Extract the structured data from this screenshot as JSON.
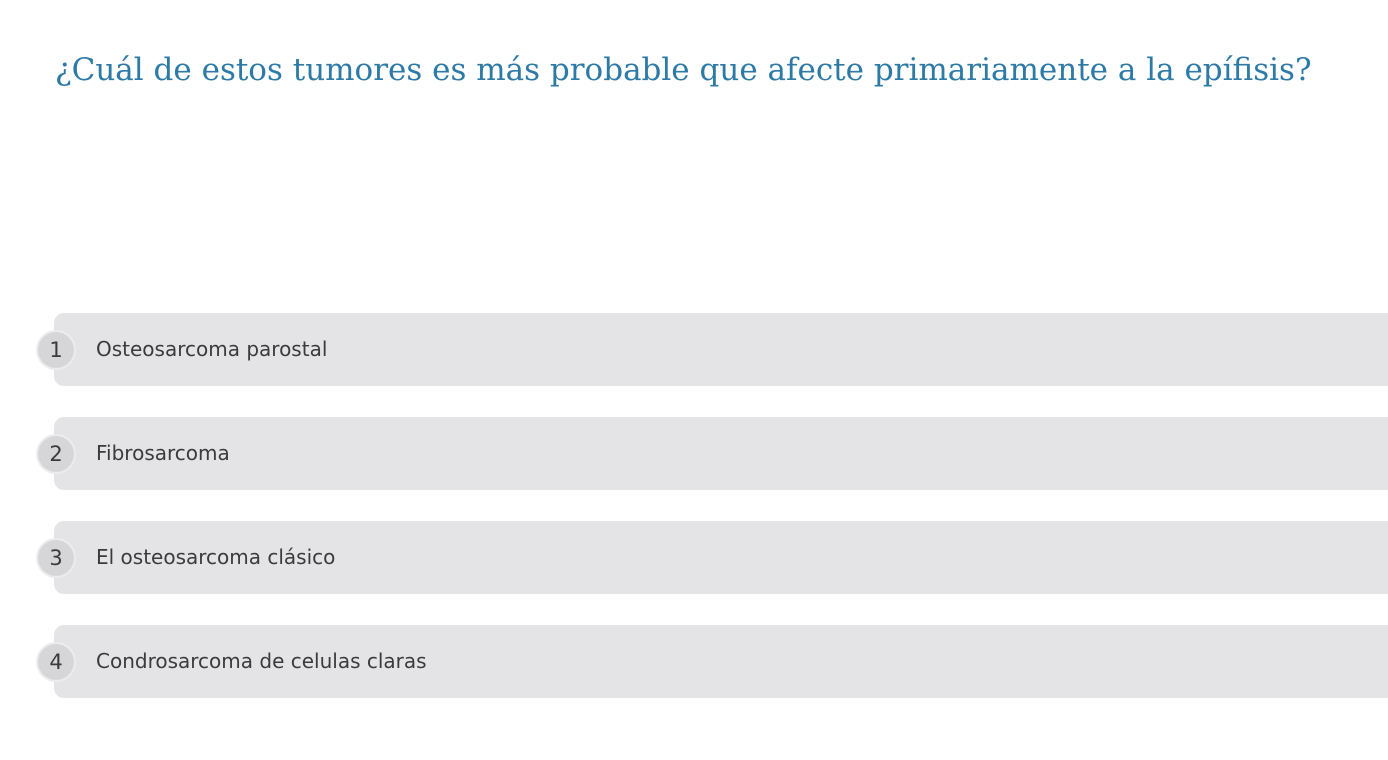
{
  "question": "¿Cuál de estos tumores es más probable que afecte primariamente a la epífisis?",
  "options": [
    {
      "number": "1",
      "label": "Osteosarcoma parostal"
    },
    {
      "number": "2",
      "label": "Fibrosarcoma"
    },
    {
      "number": "3",
      "label": "El osteosarcoma clásico"
    },
    {
      "number": "4",
      "label": "Condrosarcoma de celulas claras"
    }
  ],
  "colors": {
    "question_text": "#2e7aa6",
    "option_background": "#e4e4e6",
    "number_badge": "#d6d6d8",
    "option_text": "#3b3b3b"
  }
}
